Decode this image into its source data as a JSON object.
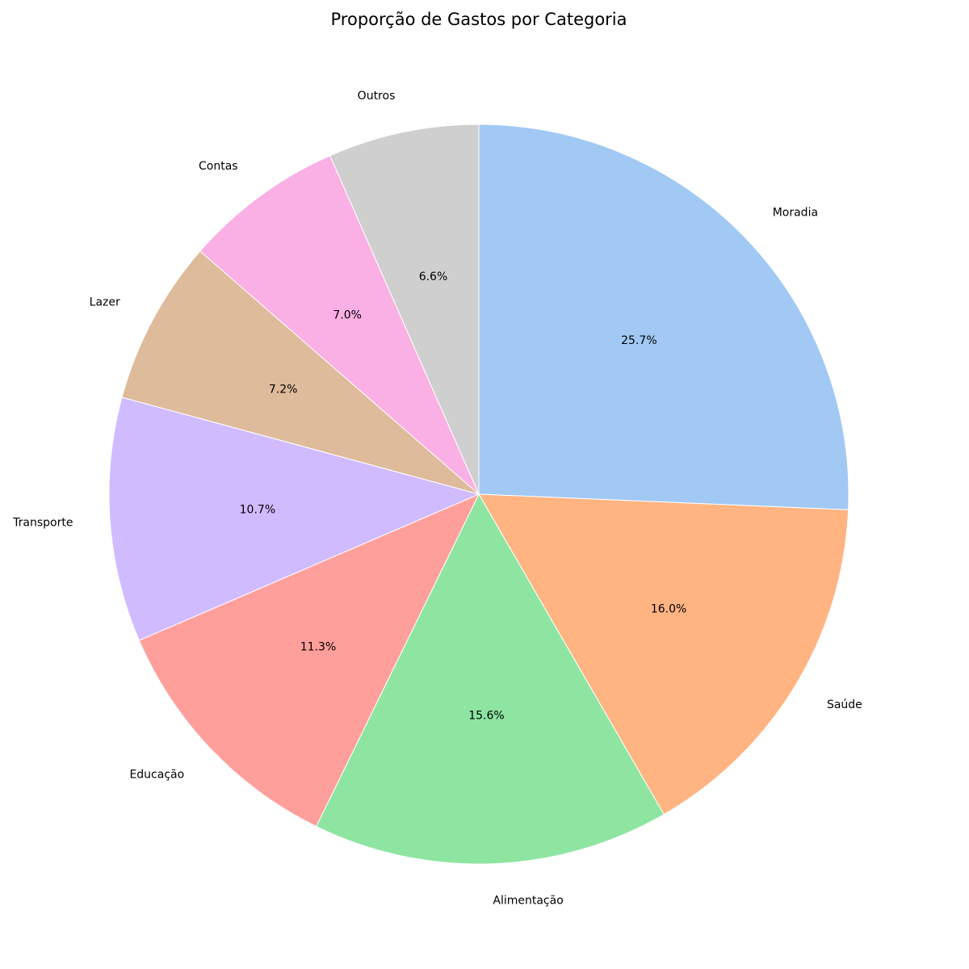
{
  "chart_data": {
    "type": "pie",
    "title": "Proporção de Gastos por Categoria",
    "start_angle_deg": 90,
    "direction": "clockwise",
    "slices": [
      {
        "label": "Moradia",
        "value": 25.7,
        "pct_text": "25.7%",
        "color": "#a1c9f4"
      },
      {
        "label": "Saúde",
        "value": 16.0,
        "pct_text": "16.0%",
        "color": "#ffb482"
      },
      {
        "label": "Alimentação",
        "value": 15.6,
        "pct_text": "15.6%",
        "color": "#8de5a1"
      },
      {
        "label": "Educação",
        "value": 11.3,
        "pct_text": "11.3%",
        "color": "#ff9f9b"
      },
      {
        "label": "Transporte",
        "value": 10.7,
        "pct_text": "10.7%",
        "color": "#d0bbff"
      },
      {
        "label": "Lazer",
        "value": 7.2,
        "pct_text": "7.2%",
        "color": "#debb9b"
      },
      {
        "label": "Contas",
        "value": 7.0,
        "pct_text": "7.0%",
        "color": "#fab0e4"
      },
      {
        "label": "Outros",
        "value": 6.6,
        "pct_text": "6.6%",
        "color": "#cfcfcf"
      }
    ]
  }
}
